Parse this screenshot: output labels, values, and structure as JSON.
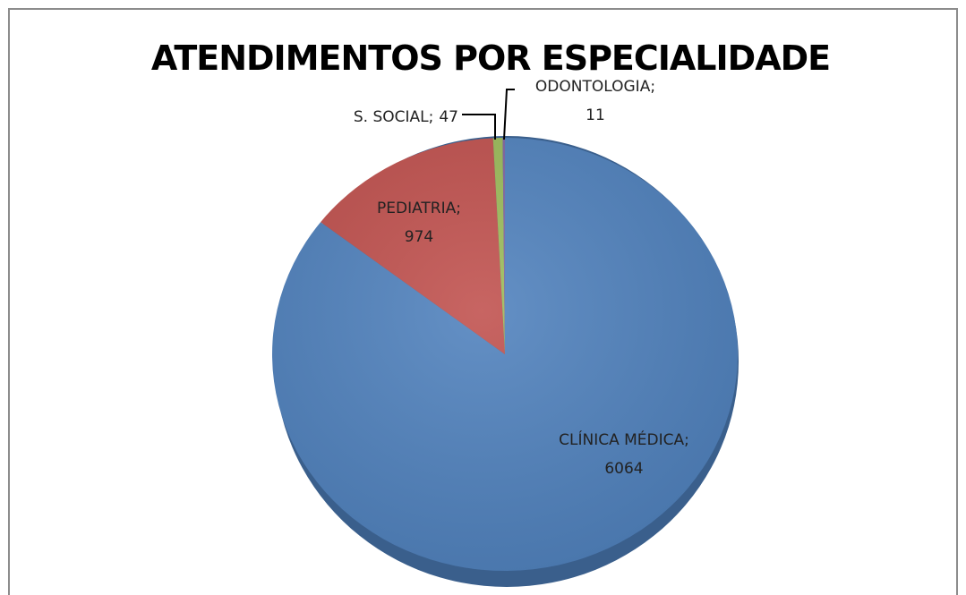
{
  "chart_data": {
    "type": "pie",
    "title": "ATENDIMENTOS POR ESPECIALIDADE",
    "categories": [
      "CLÍNICA MÉDICA",
      "PEDIATRIA",
      "S. SOCIAL",
      "ODONTOLOGIA"
    ],
    "values": [
      6064,
      974,
      47,
      11
    ],
    "colors": [
      "#4f81bd",
      "#c0504d",
      "#9bbb59",
      "#8064a2"
    ],
    "separator": ";"
  }
}
